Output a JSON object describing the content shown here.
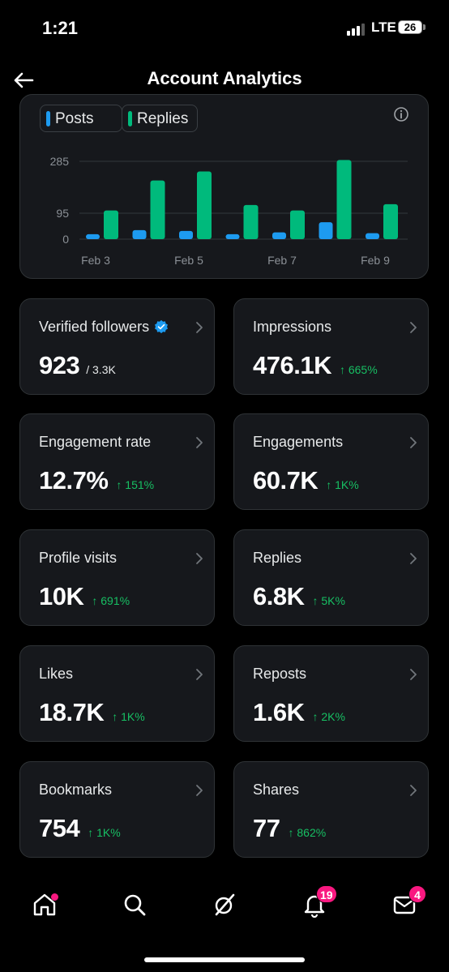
{
  "status_bar": {
    "time": "1:21",
    "network": "LTE",
    "battery": "26"
  },
  "header": {
    "title": "Account Analytics"
  },
  "chart": {
    "legend": [
      {
        "label": "Posts",
        "color": "#1d9bf0"
      },
      {
        "label": "Replies",
        "color": "#00ba7c"
      }
    ]
  },
  "chart_data": {
    "type": "bar",
    "categories": [
      "Feb 3",
      "Feb 4",
      "Feb 5",
      "Feb 6",
      "Feb 7",
      "Feb 8",
      "Feb 9"
    ],
    "series": [
      {
        "name": "Posts",
        "color": "#1d9bf0",
        "values": [
          18,
          33,
          30,
          18,
          25,
          62,
          22
        ]
      },
      {
        "name": "Replies",
        "color": "#00ba7c",
        "values": [
          105,
          215,
          248,
          125,
          105,
          290,
          128
        ]
      }
    ],
    "y_ticks": [
      "285",
      "95",
      "0"
    ],
    "x_tick_labels": [
      "Feb 3",
      "Feb 5",
      "Feb 7",
      "Feb 9"
    ],
    "ylim": [
      0,
      285
    ],
    "grid": true
  },
  "metrics": [
    {
      "label": "Verified followers",
      "value": "923",
      "extra": "/ 3.3K",
      "change": "",
      "verified": true
    },
    {
      "label": "Impressions",
      "value": "476.1K",
      "extra": "",
      "change": "↑ 665%"
    },
    {
      "label": "Engagement rate",
      "value": "12.7%",
      "extra": "",
      "change": "↑ 151%"
    },
    {
      "label": "Engagements",
      "value": "60.7K",
      "extra": "",
      "change": "↑ 1K%"
    },
    {
      "label": "Profile visits",
      "value": "10K",
      "extra": "",
      "change": "↑ 691%"
    },
    {
      "label": "Replies",
      "value": "6.8K",
      "extra": "",
      "change": "↑ 5K%"
    },
    {
      "label": "Likes",
      "value": "18.7K",
      "extra": "",
      "change": "↑ 1K%"
    },
    {
      "label": "Reposts",
      "value": "1.6K",
      "extra": "",
      "change": "↑ 2K%"
    },
    {
      "label": "Bookmarks",
      "value": "754",
      "extra": "",
      "change": "↑ 1K%"
    },
    {
      "label": "Shares",
      "value": "77",
      "extra": "",
      "change": "↑ 862%"
    }
  ],
  "nav": {
    "items": [
      "home-icon",
      "search-icon",
      "grok-icon",
      "notifications-icon",
      "messages-icon"
    ],
    "notifications_badge": "19",
    "messages_badge": "4"
  },
  "colors": {
    "accent": "#1d9bf0",
    "positive": "#17bf63",
    "badge": "#f91880"
  }
}
